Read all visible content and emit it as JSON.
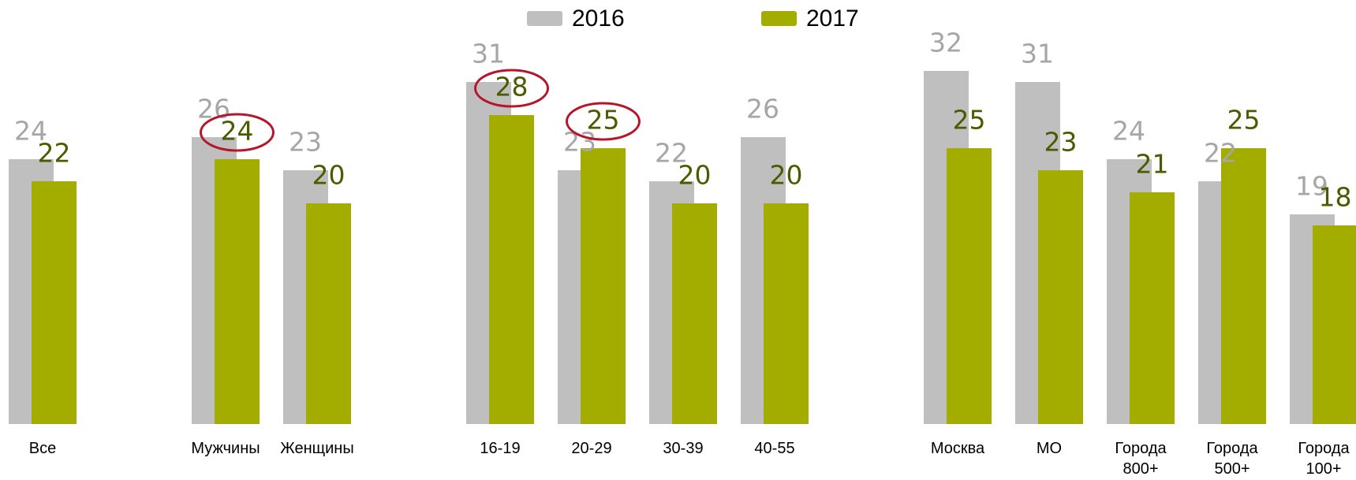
{
  "chart_data": {
    "type": "bar",
    "categories": [
      "Все",
      "Мужчины",
      "Женщины",
      "16-19",
      "20-29",
      "30-39",
      "40-55",
      "Москва",
      "МО",
      "Города 800+",
      "Города 500+",
      "Города 100+"
    ],
    "series": [
      {
        "name": "2016",
        "color": "#bfbfbf",
        "label_color": "#a6a6a6",
        "values": [
          24,
          26,
          23,
          31,
          23,
          22,
          26,
          32,
          31,
          24,
          22,
          19
        ]
      },
      {
        "name": "2017",
        "color": "#a2ad00",
        "label_color": "#4d5a00",
        "values": [
          22,
          24,
          20,
          28,
          25,
          20,
          20,
          25,
          23,
          21,
          25,
          18
        ]
      }
    ],
    "ylim": [
      0,
      35
    ],
    "highlight": {
      "series": 1,
      "indices": [
        1,
        3,
        4
      ],
      "color": "#b5162a"
    },
    "legend": "top"
  }
}
